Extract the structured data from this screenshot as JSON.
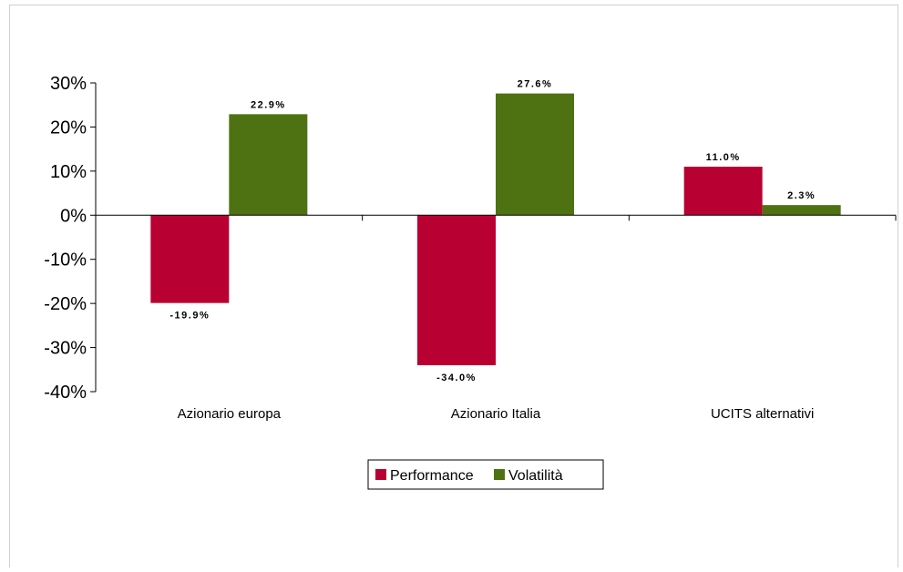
{
  "chart_data": {
    "type": "bar",
    "title": "",
    "xlabel": "",
    "ylabel": "",
    "categories": [
      "Azionario europa",
      "Azionario Italia",
      "UCITS alternativi"
    ],
    "series": [
      {
        "name": "Performance",
        "color": "#b90032",
        "values": [
          -19.9,
          -34.0,
          11.0
        ],
        "labels": [
          "-19.9%",
          "-34.0%",
          "11.0%"
        ]
      },
      {
        "name": "Volatilità",
        "color": "#4e7211",
        "values": [
          22.9,
          27.6,
          2.3
        ],
        "labels": [
          "22.9%",
          "27.6%",
          "2.3%"
        ]
      }
    ],
    "ylim": [
      -40,
      30
    ],
    "yticks": [
      30,
      20,
      10,
      0,
      -10,
      -20,
      -30,
      -40
    ],
    "ytick_labels": [
      "30%",
      "20%",
      "10%",
      "0%",
      "-10%",
      "-20%",
      "-30%",
      "-40%"
    ],
    "grid": false,
    "legend_position": "bottom"
  }
}
